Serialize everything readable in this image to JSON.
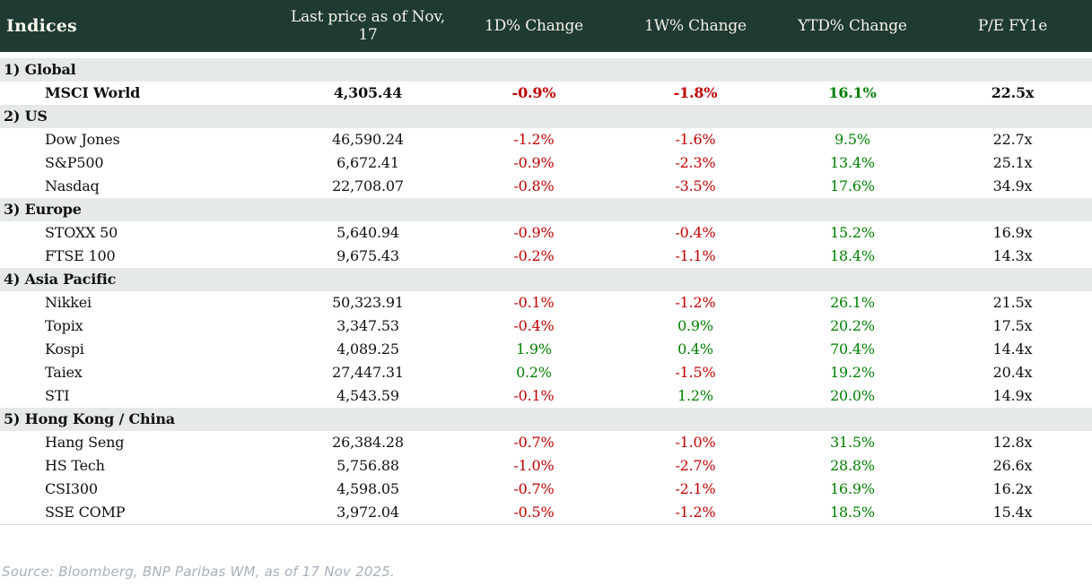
{
  "table": {
    "title": "Indices",
    "columns": [
      "Last price as of Nov, 17",
      "1D% Change",
      "1W% Change",
      "YTD% Change",
      "P/E FY1e"
    ],
    "sections": [
      {
        "label": "1) Global",
        "rows": [
          {
            "name": "MSCI World",
            "price": "4,305.44",
            "d1": "-0.9%",
            "w1": "-1.8%",
            "ytd": "16.1%",
            "pe": "22.5x",
            "bold": true
          }
        ]
      },
      {
        "label": "2) US",
        "rows": [
          {
            "name": "Dow Jones",
            "price": "46,590.24",
            "d1": "-1.2%",
            "w1": "-1.6%",
            "ytd": "9.5%",
            "pe": "22.7x",
            "bold": false
          },
          {
            "name": "S&P500",
            "price": "6,672.41",
            "d1": "-0.9%",
            "w1": "-2.3%",
            "ytd": "13.4%",
            "pe": "25.1x",
            "bold": false
          },
          {
            "name": "Nasdaq",
            "price": "22,708.07",
            "d1": "-0.8%",
            "w1": "-3.5%",
            "ytd": "17.6%",
            "pe": "34.9x",
            "bold": false
          }
        ]
      },
      {
        "label": "3) Europe",
        "rows": [
          {
            "name": "STOXX 50",
            "price": "5,640.94",
            "d1": "-0.9%",
            "w1": "-0.4%",
            "ytd": "15.2%",
            "pe": "16.9x",
            "bold": false
          },
          {
            "name": "FTSE 100",
            "price": "9,675.43",
            "d1": "-0.2%",
            "w1": "-1.1%",
            "ytd": "18.4%",
            "pe": "14.3x",
            "bold": false
          }
        ]
      },
      {
        "label": "4) Asia Pacific",
        "rows": [
          {
            "name": "Nikkei",
            "price": "50,323.91",
            "d1": "-0.1%",
            "w1": "-1.2%",
            "ytd": "26.1%",
            "pe": "21.5x",
            "bold": false
          },
          {
            "name": "Topix",
            "price": "3,347.53",
            "d1": "-0.4%",
            "w1": "0.9%",
            "ytd": "20.2%",
            "pe": "17.5x",
            "bold": false
          },
          {
            "name": "Kospi",
            "price": "4,089.25",
            "d1": "1.9%",
            "w1": "0.4%",
            "ytd": "70.4%",
            "pe": "14.4x",
            "bold": false
          },
          {
            "name": "Taiex",
            "price": "27,447.31",
            "d1": "0.2%",
            "w1": "-1.5%",
            "ytd": "19.2%",
            "pe": "20.4x",
            "bold": false
          },
          {
            "name": "STI",
            "price": "4,543.59",
            "d1": "-0.1%",
            "w1": "1.2%",
            "ytd": "20.0%",
            "pe": "14.9x",
            "bold": false
          }
        ]
      },
      {
        "label": "5) Hong Kong / China",
        "rows": [
          {
            "name": "Hang Seng",
            "price": "26,384.28",
            "d1": "-0.7%",
            "w1": "-1.0%",
            "ytd": "31.5%",
            "pe": "12.8x",
            "bold": false
          },
          {
            "name": "HS Tech",
            "price": "5,756.88",
            "d1": "-1.0%",
            "w1": "-2.7%",
            "ytd": "28.8%",
            "pe": "26.6x",
            "bold": false
          },
          {
            "name": "CSI300",
            "price": "4,598.05",
            "d1": "-0.7%",
            "w1": "-2.1%",
            "ytd": "16.9%",
            "pe": "16.2x",
            "bold": false
          },
          {
            "name": "SSE COMP",
            "price": "3,972.04",
            "d1": "-0.5%",
            "w1": "-1.2%",
            "ytd": "18.5%",
            "pe": "15.4x",
            "bold": false
          }
        ]
      }
    ]
  },
  "footer": {
    "source": "Source: Bloomberg, BNP Paribas WM, as of 17 Nov 2025."
  },
  "colors": {
    "header_bg": "#1e3a32",
    "header_text": "#f4f1e8",
    "section_bg": "#e6eae6",
    "negative": "#c00000",
    "positive": "#008000",
    "text": "#111111",
    "source_text": "#a7b1bb"
  }
}
